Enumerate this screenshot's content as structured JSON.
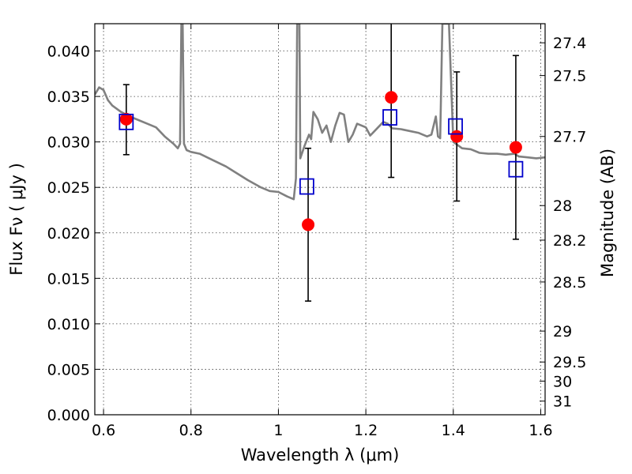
{
  "chart_data": {
    "type": "scatter",
    "title": "",
    "xlabel": "Wavelength  λ (μm)",
    "ylabel": "Flux  Fν  ( μJy )",
    "y2label": "Magnitude (AB)",
    "xlim": [
      0.58,
      1.61
    ],
    "ylim": [
      0.0,
      0.043
    ],
    "grid": true,
    "legend": "none",
    "x_ticks": [
      {
        "value": 0.6,
        "label": "0.6"
      },
      {
        "value": 0.8,
        "label": "0.8"
      },
      {
        "value": 1.0,
        "label": "1"
      },
      {
        "value": 1.2,
        "label": "1.2"
      },
      {
        "value": 1.4,
        "label": "1.4"
      },
      {
        "value": 1.6,
        "label": "1.6"
      }
    ],
    "y_ticks": [
      {
        "value": 0.0,
        "label": "0.000"
      },
      {
        "value": 0.005,
        "label": "0.005"
      },
      {
        "value": 0.01,
        "label": "0.010"
      },
      {
        "value": 0.015,
        "label": "0.015"
      },
      {
        "value": 0.02,
        "label": "0.020"
      },
      {
        "value": 0.025,
        "label": "0.025"
      },
      {
        "value": 0.03,
        "label": "0.030"
      },
      {
        "value": 0.035,
        "label": "0.035"
      },
      {
        "value": 0.04,
        "label": "0.040"
      }
    ],
    "y2_ticks": [
      {
        "flux": 0.0409,
        "label": "27.4"
      },
      {
        "flux": 0.0373,
        "label": "27.5"
      },
      {
        "flux": 0.0306,
        "label": "27.7"
      },
      {
        "flux": 0.023,
        "label": "28"
      },
      {
        "flux": 0.0192,
        "label": "28.2"
      },
      {
        "flux": 0.0146,
        "label": "28.5"
      },
      {
        "flux": 0.0092,
        "label": "29"
      },
      {
        "flux": 0.0058,
        "label": "29.5"
      },
      {
        "flux": 0.0037,
        "label": "30"
      },
      {
        "flux": 0.0015,
        "label": "31"
      }
    ],
    "series": [
      {
        "type": "line",
        "color": "#808080",
        "points": [
          [
            0.58,
            0.0352
          ],
          [
            0.59,
            0.036
          ],
          [
            0.6,
            0.0357
          ],
          [
            0.61,
            0.0346
          ],
          [
            0.62,
            0.034
          ],
          [
            0.64,
            0.0333
          ],
          [
            0.66,
            0.0328
          ],
          [
            0.68,
            0.0324
          ],
          [
            0.7,
            0.032
          ],
          [
            0.72,
            0.0316
          ],
          [
            0.74,
            0.0306
          ],
          [
            0.76,
            0.0298
          ],
          [
            0.77,
            0.0293
          ],
          [
            0.775,
            0.0298
          ],
          [
            0.778,
            0.043
          ],
          [
            0.781,
            0.043
          ],
          [
            0.784,
            0.0298
          ],
          [
            0.79,
            0.0291
          ],
          [
            0.8,
            0.0289
          ],
          [
            0.82,
            0.0287
          ],
          [
            0.85,
            0.028
          ],
          [
            0.88,
            0.0273
          ],
          [
            0.9,
            0.0267
          ],
          [
            0.93,
            0.0258
          ],
          [
            0.96,
            0.025
          ],
          [
            0.98,
            0.0246
          ],
          [
            1.0,
            0.0245
          ],
          [
            1.02,
            0.024
          ],
          [
            1.035,
            0.0237
          ],
          [
            1.04,
            0.026
          ],
          [
            1.043,
            0.043
          ],
          [
            1.048,
            0.043
          ],
          [
            1.05,
            0.0282
          ],
          [
            1.06,
            0.0296
          ],
          [
            1.07,
            0.0308
          ],
          [
            1.075,
            0.0303
          ],
          [
            1.08,
            0.0333
          ],
          [
            1.09,
            0.0325
          ],
          [
            1.1,
            0.031
          ],
          [
            1.11,
            0.0318
          ],
          [
            1.12,
            0.03
          ],
          [
            1.13,
            0.0318
          ],
          [
            1.14,
            0.0332
          ],
          [
            1.15,
            0.033
          ],
          [
            1.16,
            0.03
          ],
          [
            1.17,
            0.0308
          ],
          [
            1.18,
            0.032
          ],
          [
            1.2,
            0.0316
          ],
          [
            1.21,
            0.0307
          ],
          [
            1.22,
            0.0312
          ],
          [
            1.24,
            0.0322
          ],
          [
            1.25,
            0.032
          ],
          [
            1.26,
            0.0315
          ],
          [
            1.28,
            0.0314
          ],
          [
            1.3,
            0.0312
          ],
          [
            1.32,
            0.031
          ],
          [
            1.34,
            0.0306
          ],
          [
            1.35,
            0.0308
          ],
          [
            1.36,
            0.0328
          ],
          [
            1.365,
            0.0306
          ],
          [
            1.37,
            0.0304
          ],
          [
            1.375,
            0.043
          ],
          [
            1.39,
            0.043
          ],
          [
            1.4,
            0.03
          ],
          [
            1.42,
            0.0293
          ],
          [
            1.44,
            0.0292
          ],
          [
            1.46,
            0.0288
          ],
          [
            1.48,
            0.0287
          ],
          [
            1.5,
            0.0287
          ],
          [
            1.52,
            0.0286
          ],
          [
            1.54,
            0.0287
          ],
          [
            1.55,
            0.0284
          ],
          [
            1.57,
            0.0283
          ],
          [
            1.59,
            0.0282
          ],
          [
            1.61,
            0.0283
          ]
        ]
      },
      {
        "type": "scatter",
        "marker": "circle",
        "color": "#ff0000",
        "points": [
          {
            "x": 0.652,
            "y": 0.0325,
            "yerr_low": 0.0286,
            "yerr_high": 0.0363
          },
          {
            "x": 1.068,
            "y": 0.0209,
            "yerr_low": 0.0125,
            "yerr_high": 0.0293
          },
          {
            "x": 1.258,
            "y": 0.0349,
            "yerr_low": 0.0261,
            "yerr_high": 0.044
          },
          {
            "x": 1.408,
            "y": 0.0306,
            "yerr_low": 0.0235,
            "yerr_high": 0.0377
          },
          {
            "x": 1.543,
            "y": 0.0294,
            "yerr_low": 0.0193,
            "yerr_high": 0.0395
          }
        ]
      },
      {
        "type": "scatter",
        "marker": "square-open",
        "color": "#0000cc",
        "points": [
          {
            "x": 0.652,
            "y": 0.0322
          },
          {
            "x": 1.065,
            "y": 0.0251
          },
          {
            "x": 1.255,
            "y": 0.0327
          },
          {
            "x": 1.405,
            "y": 0.0317
          },
          {
            "x": 1.543,
            "y": 0.027
          }
        ]
      }
    ]
  }
}
